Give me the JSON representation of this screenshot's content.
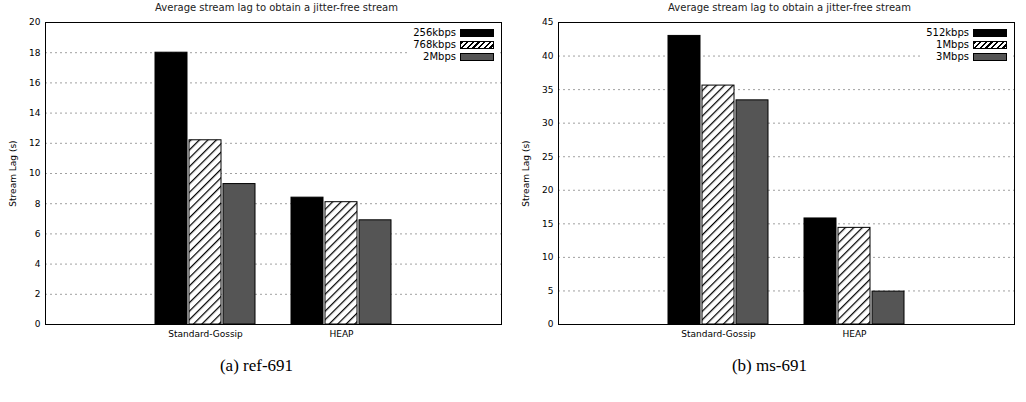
{
  "chart_data": [
    {
      "type": "bar",
      "title": "Average stream lag to obtain a jitter-free stream",
      "caption": "(a) ref-691",
      "y_label": "Stream Lag (s)",
      "categories": [
        "Standard-Gossip",
        "HEAP"
      ],
      "series": [
        {
          "name": "256kbps",
          "color": "#000000",
          "values": [
            18.0,
            8.4
          ]
        },
        {
          "name": "768kbps",
          "color": "#ffffff",
          "values": [
            12.2,
            8.1
          ]
        },
        {
          "name": "2Mbps",
          "color": "#555555",
          "values": [
            9.3,
            6.9
          ]
        }
      ],
      "ylim": [
        0,
        20
      ],
      "yticks": [
        0,
        2,
        4,
        6,
        8,
        10,
        12,
        14,
        16,
        18,
        20
      ],
      "grid": true,
      "legend": "top-right"
    },
    {
      "type": "bar",
      "title": "Average stream lag to obtain a jitter-free stream",
      "caption": "(b) ms-691",
      "y_label": "Stream Lag (s)",
      "categories": [
        "Standard-Gossip",
        "HEAP"
      ],
      "series": [
        {
          "name": "512kbps",
          "color": "#000000",
          "values": [
            43.0,
            15.8
          ]
        },
        {
          "name": "1Mbps",
          "color": "#ffffff",
          "values": [
            35.6,
            14.4
          ]
        },
        {
          "name": "3Mbps",
          "color": "#555555",
          "values": [
            33.4,
            4.9
          ]
        }
      ],
      "ylim": [
        0,
        45
      ],
      "yticks": [
        0,
        5,
        10,
        15,
        20,
        25,
        30,
        35,
        40,
        45
      ],
      "grid": true,
      "legend": "top-right"
    }
  ]
}
